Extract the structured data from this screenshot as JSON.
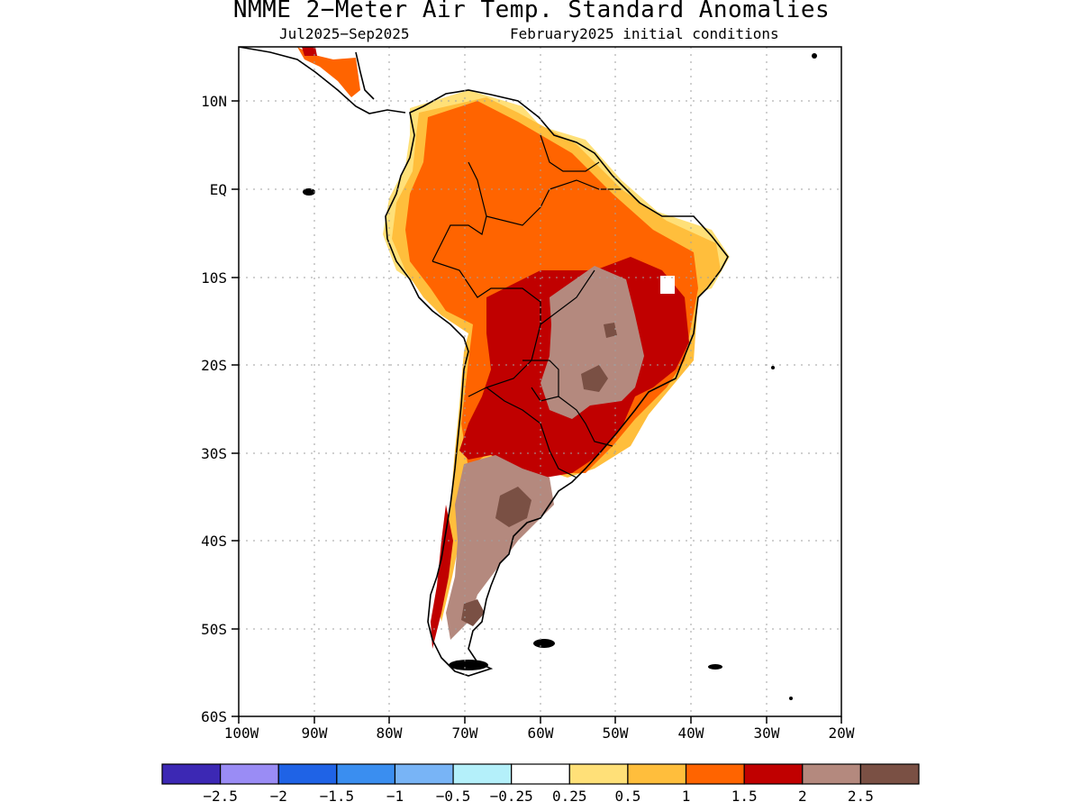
{
  "title": "NMME 2−Meter Air Temp. Standard Anomalies",
  "subtitle_left": "Jul2025−Sep2025",
  "subtitle_right": "February2025 initial conditions",
  "lat_labels": [
    "10N",
    "EQ",
    "10S",
    "20S",
    "30S",
    "40S",
    "50S",
    "60S"
  ],
  "lon_labels": [
    "100W",
    "90W",
    "80W",
    "70W",
    "60W",
    "50W",
    "40W",
    "30W",
    "20W"
  ],
  "colorbar": {
    "colors": [
      "#3c28b4",
      "#9a8cf5",
      "#1f63e6",
      "#3a8ef0",
      "#78b4f6",
      "#b4f0fa",
      "#ffffff",
      "#ffe078",
      "#ffbe3c",
      "#ff6400",
      "#c00000",
      "#b4897e",
      "#7a5044"
    ],
    "labels": [
      "−2.5",
      "−2",
      "−1.5",
      "−1",
      "−0.5",
      "−0.25",
      "0.25",
      "0.5",
      "1",
      "1.5",
      "2",
      "2.5"
    ]
  },
  "chart_data": {
    "type": "heatmap",
    "title": "NMME 2−Meter Air Temp. Standard Anomalies",
    "subtitle": [
      "Jul2025−Sep2025",
      "February2025 initial conditions"
    ],
    "x_range": [
      -100,
      -20
    ],
    "y_range": [
      -60,
      15
    ],
    "x_ticks": [
      "100W",
      "90W",
      "80W",
      "70W",
      "60W",
      "50W",
      "40W",
      "30W",
      "20W"
    ],
    "y_ticks": [
      "10N",
      "EQ",
      "10S",
      "20S",
      "30S",
      "40S",
      "50S",
      "60S"
    ],
    "grid": true,
    "legend": "bottom",
    "levels": [
      -2.5,
      -2,
      -1.5,
      -1,
      -0.5,
      -0.25,
      0.25,
      0.5,
      1,
      1.5,
      2,
      2.5
    ]
  }
}
